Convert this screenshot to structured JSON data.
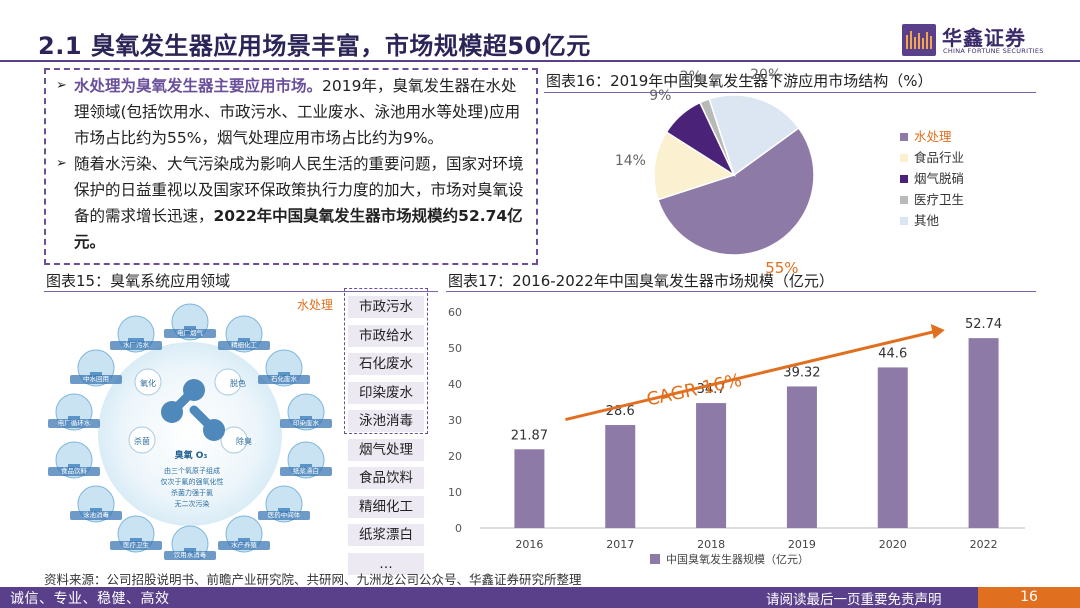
{
  "header": {
    "title": "2.1 臭氧发生器应用场景丰富，市场规模超50亿元",
    "logo_cn": "华鑫证券",
    "logo_en": "CHINA FORTUNE SECURITIES"
  },
  "summary": {
    "b1_highlight": "水处理为臭氧发生器主要应用市场。",
    "b1_text": "2019年，臭氧发生器在水处理领域(包括饮用水、市政污水、工业废水、泳池用水等处理)应用市场占比约为55%，烟气处理应用市场占比约为9%。",
    "b2_text": "随着水污染、大气污染成为影响人民生活的重要问题，国家对环境保护的日益重视以及国家环保政策执行力度的加大，市场对臭氧设备的需求增长迅速，",
    "b2_strong": "2022年中国臭氧发生器市场规模约52.74亿元。"
  },
  "fig16": {
    "title": "图表16：2019年中国臭氧发生器下游应用市场结构（%）"
  },
  "fig15": {
    "title": "图表15：臭氧系统应用领域",
    "water_label": "水处理",
    "water_items": [
      "市政污水",
      "市政给水",
      "石化废水",
      "印染废水",
      "泳池消毒"
    ],
    "other_items": [
      "烟气处理",
      "食品饮料",
      "精细化工",
      "纸浆漂白",
      "…"
    ],
    "center_labels": [
      "氧化",
      "脱色",
      "杀菌",
      "除臭",
      "臭氧 O₃"
    ],
    "center_desc": [
      "由三个氧原子组成",
      "仅次于氟的强氧化性",
      "杀菌力强于氯",
      "无二次污染"
    ],
    "ring_labels": [
      "水厂污水",
      "电厂烟气",
      "精细化工",
      "石化废水",
      "印染废水",
      "纸浆漂白",
      "医药中间体",
      "水产养殖",
      "饮用水消毒",
      "医疗卫生",
      "泳池消毒",
      "食品饮料",
      "电厂循环水",
      "中水回用"
    ]
  },
  "fig17": {
    "title": "图表17：2016-2022年中国臭氧发生器市场规模（亿元）",
    "cagr": "CAGR 16%"
  },
  "source": "资料来源：公司招股说明书、前瞻产业研究院、共研网、九洲龙公司公众号、华鑫证券研究所整理",
  "footer": {
    "left": "诚信、专业、稳健、高效",
    "right": "请阅读最后一页重要免责声明",
    "page": "16"
  },
  "colors": {
    "brand_purple": "#5a3f8a",
    "accent_orange": "#e0701f",
    "bar": "#8e7aa6"
  },
  "chart_data": [
    {
      "type": "pie",
      "title": "图表16：2019年中国臭氧发生器下游应用市场结构（%）",
      "categories": [
        "水处理",
        "食品行业",
        "烟气脱硝",
        "医疗卫生",
        "其他"
      ],
      "values": [
        55,
        14,
        9,
        2,
        20
      ],
      "labels": [
        "55%",
        "14%",
        "9%",
        "2%",
        "20%"
      ],
      "colors": [
        "#8e7aa6",
        "#fbf0cf",
        "#4a2378",
        "#b9b9b9",
        "#dce6f2"
      ],
      "legend_position": "right"
    },
    {
      "type": "bar",
      "title": "图表17：2016-2022年中国臭氧发生器市场规模（亿元）",
      "categories": [
        "2016",
        "2017",
        "2018",
        "2019",
        "2020",
        "2022"
      ],
      "series": [
        {
          "name": "中国臭氧发生器规模（亿元）",
          "values": [
            21.87,
            28.6,
            34.7,
            39.32,
            44.6,
            52.74
          ]
        }
      ],
      "data_labels": [
        "21.87",
        "28.6",
        "34.7",
        "39.32",
        "44.6",
        "52.74"
      ],
      "ylim": [
        0,
        60
      ],
      "yticks": [
        "0",
        "10",
        "20",
        "30",
        "40",
        "50",
        "60"
      ],
      "annotation": "CAGR 16%",
      "grid": false,
      "legend_position": "bottom"
    }
  ]
}
